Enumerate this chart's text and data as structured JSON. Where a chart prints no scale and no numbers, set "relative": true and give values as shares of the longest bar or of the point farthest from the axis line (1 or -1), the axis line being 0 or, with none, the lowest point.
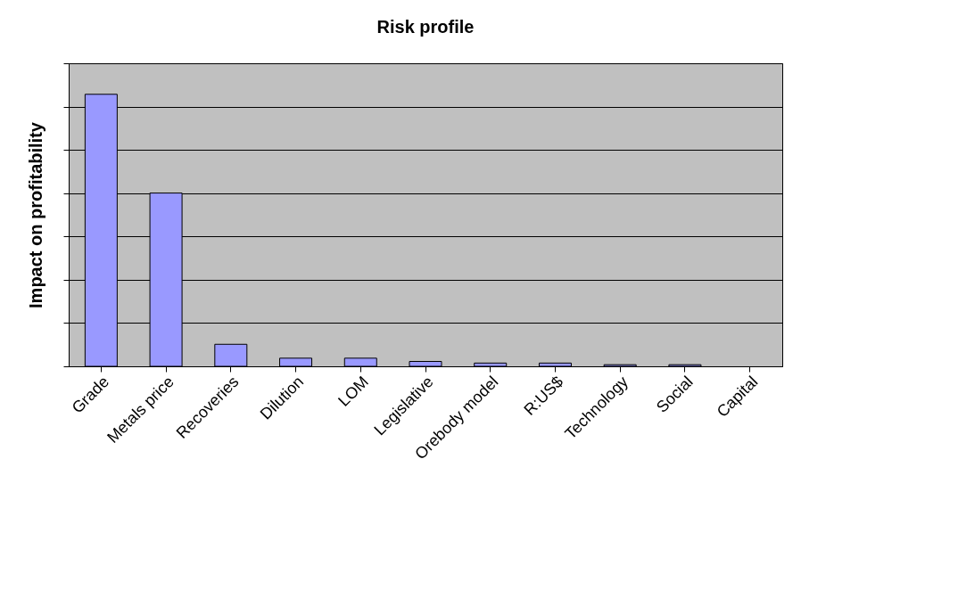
{
  "chart_data": {
    "type": "bar",
    "title": "Risk profile",
    "ylabel": "Impact on profitability",
    "relative": true,
    "grid": "y",
    "categories": [
      "Grade",
      "Metals price",
      "Recoveries",
      "Dilution",
      "LOM",
      "Legislative",
      "Orebody model",
      "R:US$",
      "Technology",
      "Social",
      "Capital"
    ],
    "values": [
      1,
      0.637,
      0.081,
      0.03,
      0.03,
      0.018,
      0.012,
      0.012,
      0.006,
      0.006,
      0
    ],
    "color": "#9999ff"
  }
}
